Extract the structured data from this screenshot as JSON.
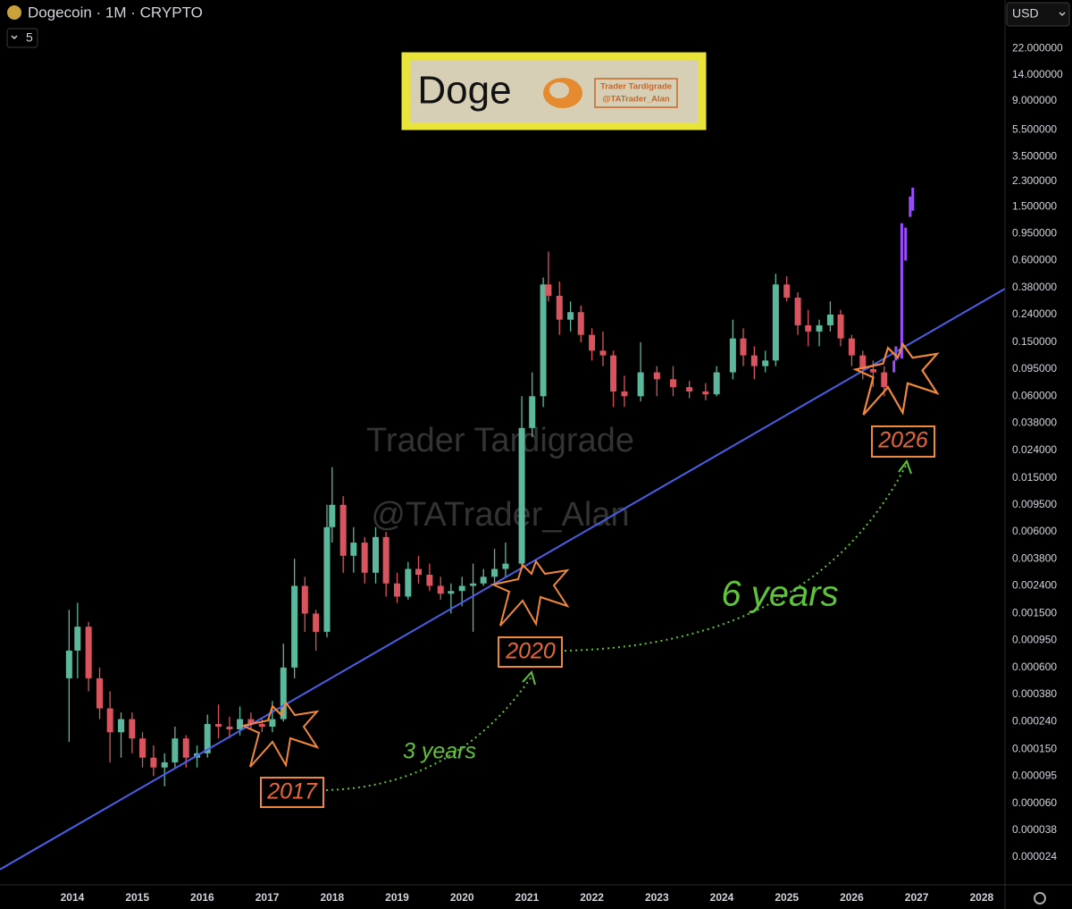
{
  "header": {
    "title": "Dogecoin · 1M · CRYPTO",
    "interval_badge": "5",
    "currency": "USD"
  },
  "chart_data": {
    "type": "candlestick",
    "log_scale": true,
    "grid": false,
    "up_color": "#5cb89d",
    "down_color": "#d9545e",
    "xlim": [
      2012.886,
      2028.36
    ],
    "xticks": [
      2014,
      2015,
      2016,
      2017,
      2018,
      2019,
      2020,
      2021,
      2022,
      2023,
      2024,
      2025,
      2026,
      2027,
      2028
    ],
    "ylim": [
      1.5e-05,
      50
    ],
    "yticks": [
      {
        "value": 22,
        "label": "22.000000"
      },
      {
        "value": 14,
        "label": "14.000000"
      },
      {
        "value": 9,
        "label": "9.000000"
      },
      {
        "value": 5.5,
        "label": "5.500000"
      },
      {
        "value": 3.5,
        "label": "3.500000"
      },
      {
        "value": 2.3,
        "label": "2.300000"
      },
      {
        "value": 1.5,
        "label": "1.500000"
      },
      {
        "value": 0.95,
        "label": "0.950000"
      },
      {
        "value": 0.6,
        "label": "0.600000"
      },
      {
        "value": 0.38,
        "label": "0.380000"
      },
      {
        "value": 0.24,
        "label": "0.240000"
      },
      {
        "value": 0.15,
        "label": "0.150000"
      },
      {
        "value": 0.095,
        "label": "0.095000"
      },
      {
        "value": 0.06,
        "label": "0.060000"
      },
      {
        "value": 0.038,
        "label": "0.038000"
      },
      {
        "value": 0.024,
        "label": "0.024000"
      },
      {
        "value": 0.015,
        "label": "0.015000"
      },
      {
        "value": 0.0095,
        "label": "0.009500"
      },
      {
        "value": 0.006,
        "label": "0.006000"
      },
      {
        "value": 0.0038,
        "label": "0.003800"
      },
      {
        "value": 0.0024,
        "label": "0.002400"
      },
      {
        "value": 0.0015,
        "label": "0.001500"
      },
      {
        "value": 0.00095,
        "label": "0.000950"
      },
      {
        "value": 0.0006,
        "label": "0.000600"
      },
      {
        "value": 0.00038,
        "label": "0.000380"
      },
      {
        "value": 0.00024,
        "label": "0.000240"
      },
      {
        "value": 0.00015,
        "label": "0.000150"
      },
      {
        "value": 9.5e-05,
        "label": "0.000095"
      },
      {
        "value": 6e-05,
        "label": "0.000060"
      },
      {
        "value": 3.8e-05,
        "label": "0.000038"
      },
      {
        "value": 2.4e-05,
        "label": "0.000024"
      }
    ],
    "x": [
      2013.95,
      2014.08,
      2014.25,
      2014.42,
      2014.58,
      2014.75,
      2014.92,
      2015.08,
      2015.25,
      2015.42,
      2015.58,
      2015.75,
      2015.92,
      2016.08,
      2016.25,
      2016.42,
      2016.58,
      2016.75,
      2016.92,
      2017.08,
      2017.25,
      2017.42,
      2017.58,
      2017.75,
      2017.92,
      2018.0,
      2018.17,
      2018.33,
      2018.5,
      2018.67,
      2018.83,
      2019.0,
      2019.17,
      2019.33,
      2019.5,
      2019.67,
      2019.83,
      2020.0,
      2020.17,
      2020.33,
      2020.5,
      2020.67,
      2020.92,
      2021.08,
      2021.25,
      2021.33,
      2021.5,
      2021.67,
      2021.83,
      2022.0,
      2022.17,
      2022.33,
      2022.5,
      2022.75,
      2023.0,
      2023.25,
      2023.5,
      2023.75,
      2023.92,
      2024.17,
      2024.33,
      2024.5,
      2024.67,
      2024.83,
      2025.0,
      2025.17,
      2025.33,
      2025.5,
      2025.67,
      2025.83,
      2026.0,
      2026.17,
      2026.33,
      2026.5
    ],
    "open": [
      0.0005,
      0.0008,
      0.0012,
      0.0005,
      0.0003,
      0.0002,
      0.00025,
      0.00018,
      0.00013,
      0.00011,
      0.00012,
      0.00018,
      0.00013,
      0.00014,
      0.00023,
      0.00022,
      0.00021,
      0.00025,
      0.00023,
      0.00022,
      0.00025,
      0.0006,
      0.0024,
      0.0015,
      0.0011,
      0.0065,
      0.0095,
      0.004,
      0.005,
      0.003,
      0.0055,
      0.0025,
      0.002,
      0.0032,
      0.0029,
      0.0024,
      0.0021,
      0.0022,
      0.0024,
      0.0025,
      0.0028,
      0.0032,
      0.0035,
      0.035,
      0.06,
      0.4,
      0.33,
      0.22,
      0.25,
      0.17,
      0.13,
      0.12,
      0.065,
      0.06,
      0.09,
      0.08,
      0.07,
      0.065,
      0.062,
      0.09,
      0.16,
      0.12,
      0.1,
      0.11,
      0.4,
      0.32,
      0.2,
      0.18,
      0.2,
      0.24,
      0.16,
      0.12,
      0.095,
      0.09
    ],
    "high": [
      0.0016,
      0.0018,
      0.0013,
      0.0006,
      0.0004,
      0.00028,
      0.00028,
      0.0002,
      0.00016,
      0.00014,
      0.00022,
      0.00019,
      0.00016,
      0.00027,
      0.00032,
      0.00026,
      0.00031,
      0.00028,
      0.00025,
      0.00034,
      0.0009,
      0.0038,
      0.0028,
      0.0016,
      0.0095,
      0.018,
      0.011,
      0.0065,
      0.0055,
      0.0065,
      0.006,
      0.003,
      0.0036,
      0.004,
      0.0035,
      0.0028,
      0.0025,
      0.0028,
      0.0035,
      0.0032,
      0.0045,
      0.005,
      0.06,
      0.09,
      0.45,
      0.7,
      0.42,
      0.3,
      0.28,
      0.19,
      0.18,
      0.13,
      0.085,
      0.15,
      0.1,
      0.1,
      0.078,
      0.075,
      0.1,
      0.22,
      0.19,
      0.14,
      0.13,
      0.48,
      0.46,
      0.35,
      0.26,
      0.22,
      0.3,
      0.26,
      0.17,
      0.13,
      0.11,
      0.1
    ],
    "low": [
      0.00017,
      0.0005,
      0.0004,
      0.00025,
      0.00012,
      0.00013,
      0.00014,
      0.00011,
      9.5e-05,
      8e-05,
      0.00011,
      0.00011,
      0.00011,
      0.00013,
      0.00018,
      0.00018,
      0.00019,
      0.00021,
      0.0002,
      0.0002,
      0.00024,
      0.0005,
      0.0011,
      0.0008,
      0.001,
      0.005,
      0.003,
      0.003,
      0.0025,
      0.0025,
      0.002,
      0.0018,
      0.0019,
      0.0025,
      0.0022,
      0.0019,
      0.0015,
      0.0017,
      0.0011,
      0.0024,
      0.0025,
      0.0028,
      0.0034,
      0.03,
      0.05,
      0.3,
      0.17,
      0.18,
      0.15,
      0.11,
      0.1,
      0.05,
      0.05,
      0.055,
      0.06,
      0.06,
      0.058,
      0.056,
      0.06,
      0.08,
      0.1,
      0.08,
      0.09,
      0.1,
      0.3,
      0.17,
      0.14,
      0.14,
      0.18,
      0.14,
      0.1,
      0.08,
      0.07,
      0.06
    ],
    "close": [
      0.0008,
      0.0012,
      0.0005,
      0.0003,
      0.0002,
      0.00025,
      0.00018,
      0.00013,
      0.00011,
      0.00012,
      0.00018,
      0.00013,
      0.00014,
      0.00023,
      0.00022,
      0.00021,
      0.00025,
      0.00023,
      0.00022,
      0.00025,
      0.0006,
      0.0024,
      0.0015,
      0.0011,
      0.0065,
      0.0095,
      0.004,
      0.005,
      0.003,
      0.0055,
      0.0025,
      0.002,
      0.0032,
      0.0029,
      0.0024,
      0.0021,
      0.0022,
      0.0024,
      0.0025,
      0.0028,
      0.0032,
      0.0035,
      0.035,
      0.06,
      0.4,
      0.33,
      0.22,
      0.25,
      0.17,
      0.13,
      0.12,
      0.065,
      0.06,
      0.09,
      0.08,
      0.07,
      0.065,
      0.062,
      0.09,
      0.16,
      0.12,
      0.1,
      0.11,
      0.4,
      0.32,
      0.2,
      0.18,
      0.2,
      0.24,
      0.16,
      0.12,
      0.095,
      0.09,
      0.07
    ],
    "projection": {
      "color": "#9b4dff",
      "x": [
        2026.65,
        2026.68,
        2026.77,
        2026.83,
        2026.9,
        2026.94
      ],
      "low": [
        0.09,
        0.11,
        0.114,
        0.6,
        1.26,
        1.4
      ],
      "high": [
        0.11,
        0.14,
        1.13,
        1.05,
        1.78,
        2.07
      ]
    },
    "trendline": {
      "color": "#4a5fe8",
      "x": [
        2012.886,
        2028.36
      ],
      "values": [
        1.95e-05,
        0.372
      ]
    },
    "annotations": {
      "box_title": "Doge",
      "logo_name": "Trader Tardigrade",
      "logo_handle": "@TATrader_Alan",
      "watermark_name": "Trader Tardigrade",
      "watermark_handle": "@TATrader_Alan",
      "labels": [
        "2017",
        "2020",
        "2026"
      ],
      "spans": [
        "3 years",
        "6 years"
      ]
    }
  }
}
